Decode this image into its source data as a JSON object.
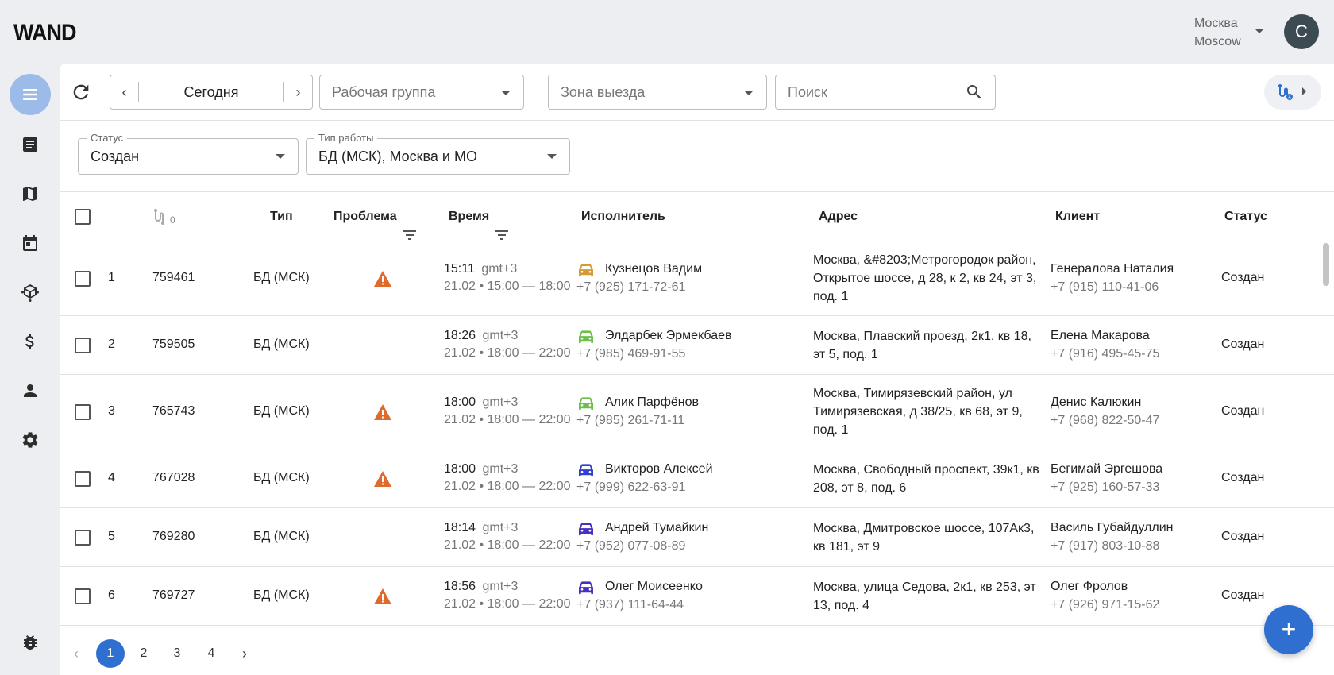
{
  "app": {
    "logo": "WAND",
    "city": {
      "ru": "Москва",
      "en": "Moscow"
    },
    "user_initial": "С"
  },
  "sidebar": {
    "items": [
      {
        "name": "menu",
        "icon": "menu-icon",
        "active": true
      },
      {
        "name": "orders",
        "icon": "document-icon"
      },
      {
        "name": "map",
        "icon": "map-icon"
      },
      {
        "name": "calendar",
        "icon": "calendar-icon"
      },
      {
        "name": "hub",
        "icon": "hub-icon"
      },
      {
        "name": "finance",
        "icon": "dollar-icon"
      },
      {
        "name": "users",
        "icon": "person-icon"
      },
      {
        "name": "settings",
        "icon": "gear-icon"
      }
    ],
    "bottom_icon": "bug-icon"
  },
  "toolbar": {
    "date_label": "Сегодня",
    "workgroup_placeholder": "Рабочая группа",
    "zone_placeholder": "Зона выезда",
    "search_placeholder": "Поиск",
    "route_icon": "route-icon"
  },
  "filters": {
    "status": {
      "label": "Статус",
      "value": "Создан"
    },
    "work_type": {
      "label": "Тип работы",
      "value": "БД (МСК), Москва и МО"
    }
  },
  "table": {
    "route_count": "0",
    "columns": {
      "type": "Тип",
      "problem": "Проблема",
      "time": "Время",
      "executor": "Исполнитель",
      "address": "Адрес",
      "client": "Клиент",
      "status": "Статус"
    },
    "rows": [
      {
        "num": "1",
        "id": "759461",
        "type": "БД (МСК)",
        "problem": true,
        "time": "15:11",
        "tz": "gmt+3",
        "window": "21.02 • 15:00 — 18:00",
        "executor": "Кузнецов Вадим",
        "executor_phone": "+7 (925) 171-72-61",
        "car_color": "#d59a36",
        "address": "Москва, &#8203;Метрогородок район, Открытое шоссе, д 28, к 2, кв 24, эт 3, под. 1",
        "client": "Генералова Наталия",
        "client_phone": "+7 (915) 110-41-06",
        "status": "Создан"
      },
      {
        "num": "2",
        "id": "759505",
        "type": "БД (МСК)",
        "problem": false,
        "time": "18:26",
        "tz": "gmt+3",
        "window": "21.02 • 18:00 — 22:00",
        "executor": "Элдарбек Эрмекбаев",
        "executor_phone": "+7 (985) 469-91-55",
        "car_color": "#6cc04a",
        "address": "Москва, Плавский проезд, 2к1, кв 18, эт 5, под. 1",
        "client": "Елена Макарова",
        "client_phone": "+7 (916) 495-45-75",
        "status": "Создан"
      },
      {
        "num": "3",
        "id": "765743",
        "type": "БД (МСК)",
        "problem": true,
        "time": "18:00",
        "tz": "gmt+3",
        "window": "21.02 • 18:00 — 22:00",
        "executor": "Алик Парфёнов",
        "executor_phone": "+7 (985) 261-71-11",
        "car_color": "#6cc04a",
        "address": "Москва, Тимирязевский район, ул Тимирязевская, д 38/25, кв 68, эт 9, под. 1",
        "client": "Денис Калюкин",
        "client_phone": "+7 (968) 822-50-47",
        "status": "Создан"
      },
      {
        "num": "4",
        "id": "767028",
        "type": "БД (МСК)",
        "problem": true,
        "time": "18:00",
        "tz": "gmt+3",
        "window": "21.02 • 18:00 — 22:00",
        "executor": "Викторов Алексей",
        "executor_phone": "+7 (999) 622-63-91",
        "car_color": "#2f3fd0",
        "address": "Москва, Свободный проспект, 39к1, кв 208, эт 8, под. 6",
        "client": "Бегимай Эргешова",
        "client_phone": "+7 (925) 160-57-33",
        "status": "Создан"
      },
      {
        "num": "5",
        "id": "769280",
        "type": "БД (МСК)",
        "problem": false,
        "time": "18:14",
        "tz": "gmt+3",
        "window": "21.02 • 18:00 — 22:00",
        "executor": "Андрей Тумайкин",
        "executor_phone": "+7 (952) 077-08-89",
        "car_color": "#4a2fc0",
        "address": "Москва, Дмитровское шоссе, 107Ак3, кв 181, эт 9",
        "client": "Василь Губайдуллин",
        "client_phone": "+7 (917) 803-10-88",
        "status": "Создан"
      },
      {
        "num": "6",
        "id": "769727",
        "type": "БД (МСК)",
        "problem": true,
        "time": "18:56",
        "tz": "gmt+3",
        "window": "21.02 • 18:00 — 22:00",
        "executor": "Олег Моисеенко",
        "executor_phone": "+7 (937) 111-64-44",
        "car_color": "#4a2fc0",
        "address": "Москва, улица Седова, 2к1, кв 253, эт 13, под. 4",
        "client": "Олег Фролов",
        "client_phone": "+7 (926) 971-15-62",
        "status": "Создан"
      }
    ]
  },
  "pagination": {
    "pages": [
      "1",
      "2",
      "3",
      "4"
    ],
    "current": "1"
  },
  "fab_label": "+",
  "colors": {
    "accent": "#2f6fd0",
    "warning": "#e06a2c"
  }
}
